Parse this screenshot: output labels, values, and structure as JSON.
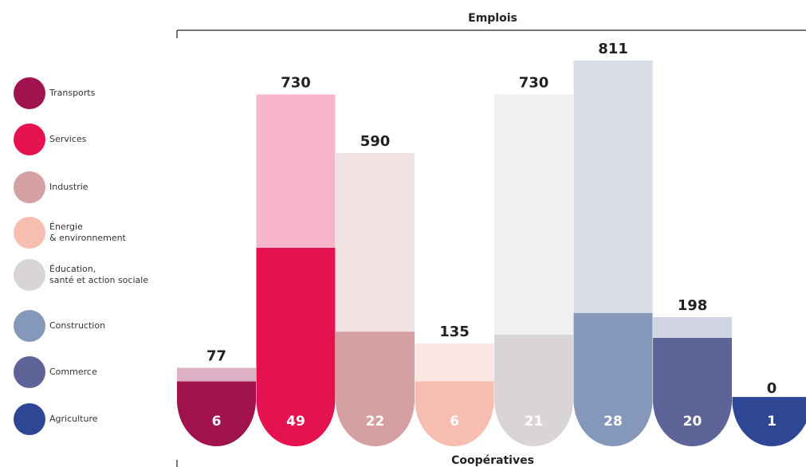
{
  "chart_data": {
    "type": "bar",
    "categories": [
      "Transports",
      "Services",
      "Industrie",
      "Énergie\n& environnement",
      "Éducation,\nsanté et action sociale",
      "Construction",
      "Commerce",
      "Agriculture"
    ],
    "series": [
      {
        "name": "Emplois",
        "values": [
          77,
          730,
          590,
          135,
          730,
          811,
          198,
          0
        ],
        "colors": [
          "#dcb0c5",
          "#f6b5ca",
          "#f0e1e2",
          "#fbe6e3",
          "#f2eff0",
          "#d8dde8",
          "#d0d3e3",
          "#d0d6ea"
        ]
      },
      {
        "name": "Coopératives",
        "values": [
          6,
          49,
          22,
          6,
          21,
          28,
          20,
          1
        ],
        "colors": [
          "#a0134f",
          "#e5124f",
          "#d4a0a2",
          "#f7bdb0",
          "#dad5d5",
          "#8598b9",
          "#5e6497",
          "#2e4795"
        ]
      }
    ]
  }
}
